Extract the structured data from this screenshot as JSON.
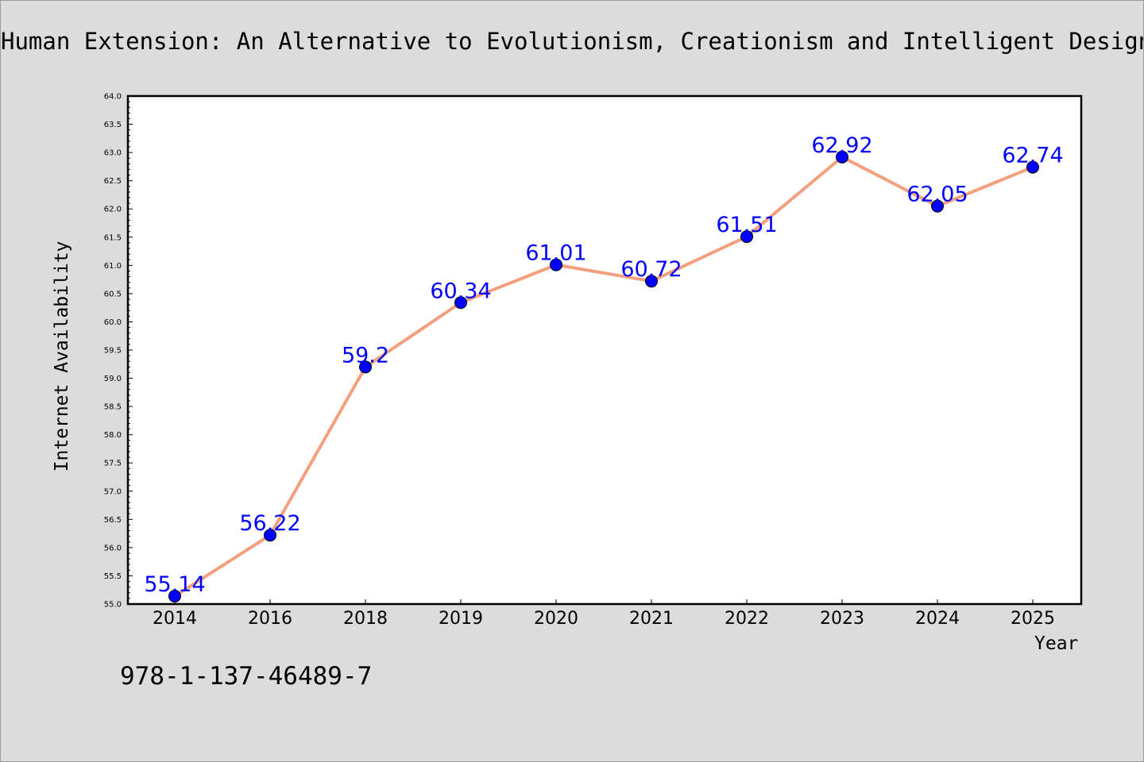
{
  "chart_data": {
    "type": "line",
    "title": "Human Extension: An Alternative to Evolutionism, Creationism and Intelligent Design",
    "xlabel": "Year",
    "ylabel": "Internet Availability",
    "categories": [
      "2014",
      "2016",
      "2018",
      "2019",
      "2020",
      "2021",
      "2022",
      "2023",
      "2024",
      "2025"
    ],
    "values": [
      55.14,
      56.22,
      59.2,
      60.34,
      61.01,
      60.72,
      61.51,
      62.92,
      62.05,
      62.74
    ],
    "data_labels": [
      "55.14",
      "56.22",
      "59.2",
      "60.34",
      "61.01",
      "60.72",
      "61.51",
      "62.92",
      "62.05",
      "62.74"
    ],
    "ylim": [
      55.0,
      64.0
    ],
    "yticks": [
      "55.0",
      "55.5",
      "56.0",
      "56.5",
      "57.0",
      "57.5",
      "58.0",
      "58.5",
      "59.0",
      "59.5",
      "60.0",
      "60.5",
      "61.0",
      "61.5",
      "62.0",
      "62.5",
      "63.0",
      "63.5",
      "64.0"
    ],
    "grid": false,
    "line_color": "#f4a07e",
    "marker_color": "#0000ff",
    "label_color": "#0000ff"
  },
  "footer": {
    "isbn": "978-1-137-46489-7"
  }
}
